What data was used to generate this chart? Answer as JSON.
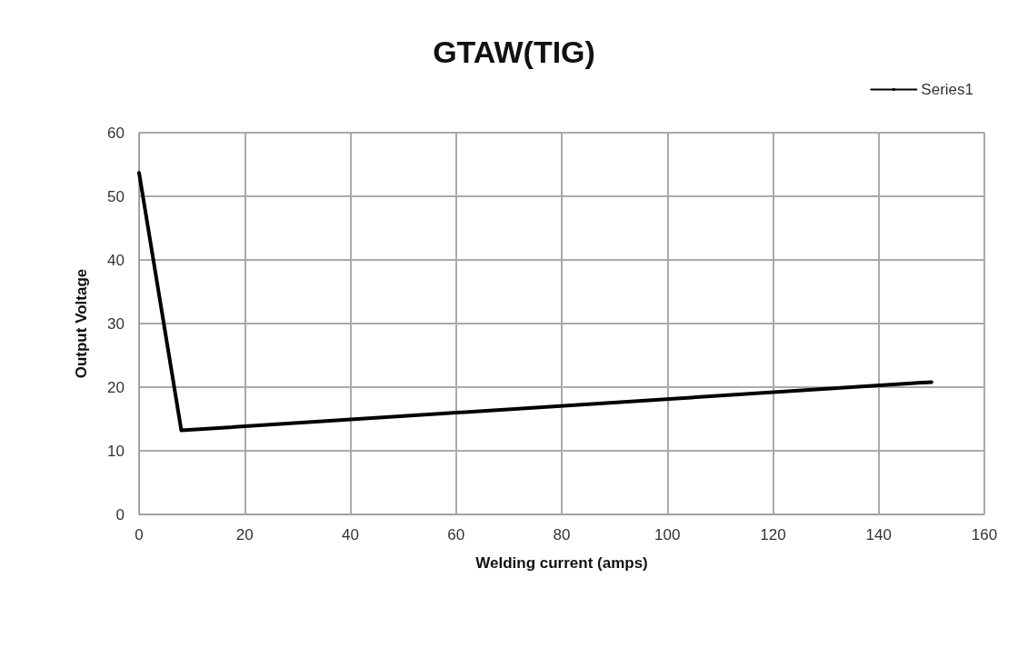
{
  "chart_data": {
    "type": "line",
    "title": "GTAW(TIG)",
    "xlabel": "Welding current (amps)",
    "ylabel": "Output Voltage",
    "series": [
      {
        "name": "Series1",
        "color": "#000000",
        "x": [
          0,
          8,
          150
        ],
        "values": [
          53.7,
          13.2,
          20.8
        ]
      }
    ],
    "xlim": [
      0,
      160
    ],
    "xticks": [
      0,
      20,
      40,
      60,
      80,
      100,
      120,
      140,
      160
    ],
    "ylim": [
      0,
      60
    ],
    "yticks": [
      0,
      10,
      20,
      30,
      40,
      50,
      60
    ],
    "grid": true,
    "legend": "top right",
    "marker": "none",
    "line_style": "solid"
  }
}
